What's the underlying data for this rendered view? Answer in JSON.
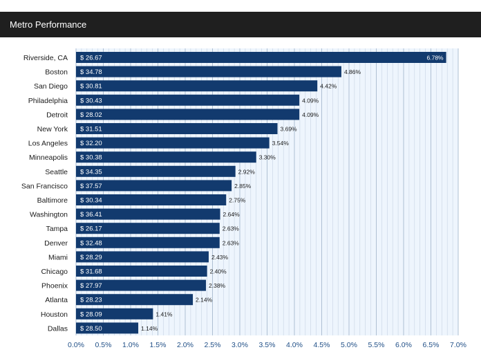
{
  "header": {
    "title": "Metro Performance"
  },
  "colors": {
    "bar": "#123a6e",
    "grid": "#c5d3e3",
    "plot_bg": "#eef5fd",
    "header_bg": "#1f1f1f"
  },
  "chart_data": {
    "type": "bar",
    "orientation": "horizontal",
    "categories": [
      "Riverside, CA",
      "Boston",
      "San Diego",
      "Philadelphia",
      "Detroit",
      "New York",
      "Los Angeles",
      "Minneapolis",
      "Seattle",
      "San Francisco",
      "Baltimore",
      "Washington",
      "Tampa",
      "Denver",
      "Miami",
      "Chicago",
      "Phoenix",
      "Atlanta",
      "Houston",
      "Dallas"
    ],
    "values": [
      6.78,
      4.86,
      4.42,
      4.09,
      4.09,
      3.69,
      3.54,
      3.3,
      2.92,
      2.85,
      2.75,
      2.64,
      2.63,
      2.63,
      2.43,
      2.4,
      2.38,
      2.14,
      1.41,
      1.14
    ],
    "value_labels": [
      "6.78%",
      "4.86%",
      "4.42%",
      "4.09%",
      "4.09%",
      "3.69%",
      "3.54%",
      "3.30%",
      "2.92%",
      "2.85%",
      "2.75%",
      "2.64%",
      "2.63%",
      "2.63%",
      "2.43%",
      "2.40%",
      "2.38%",
      "2.14%",
      "1.41%",
      "1.14%"
    ],
    "bar_labels": [
      "$ 26.67",
      "$ 34.78",
      "$ 30.81",
      "$ 30.43",
      "$ 28.02",
      "$ 31.51",
      "$ 32.20",
      "$ 30.38",
      "$ 34.35",
      "$ 37.57",
      "$ 30.34",
      "$ 36.41",
      "$ 26.17",
      "$ 32.48",
      "$ 28.29",
      "$ 31.68",
      "$ 27.97",
      "$ 28.23",
      "$ 28.09",
      "$ 28.50"
    ],
    "xlim": [
      0,
      7.0
    ],
    "x_ticks": [
      "0.0%",
      "0.5%",
      "1.0%",
      "1.5%",
      "2.0%",
      "2.5%",
      "3.0%",
      "3.5%",
      "4.0%",
      "4.5%",
      "5.0%",
      "5.5%",
      "6.0%",
      "6.5%",
      "7.0%"
    ],
    "grid": true
  }
}
